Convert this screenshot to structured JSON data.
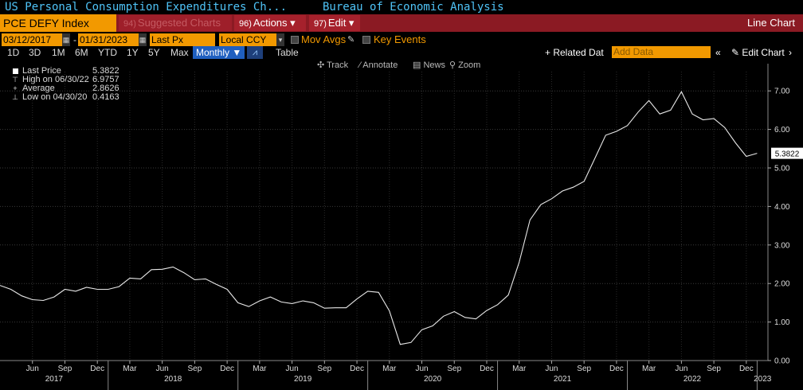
{
  "window": {
    "title": "US Personal Consumption Expenditures Ch...",
    "source": "Bureau of Economic Analysis"
  },
  "command_bar": {
    "ticker": "PCE DEFY Index",
    "suggested": {
      "num": "94)",
      "label": "Suggested Charts"
    },
    "actions": {
      "num": "96)",
      "label": "Actions ▾"
    },
    "edit": {
      "num": "97)",
      "label": "Edit ▾"
    },
    "chart_type": "Line Chart"
  },
  "range": {
    "start": "03/12/2017",
    "end": "01/31/2023",
    "dash": "-",
    "field": "Last Px",
    "currency": "Local CCY",
    "mov_avgs": "Mov Avgs",
    "key_events": "Key Events"
  },
  "toolbar": {
    "periods": [
      "1D",
      "3D",
      "1M",
      "6M",
      "YTD",
      "1Y",
      "5Y",
      "Max"
    ],
    "frequency": "Monthly ▼",
    "table": "Table",
    "related": "+ Related Dat",
    "add_data_placeholder": "Add Data",
    "collapse": "«",
    "edit_chart": "✎ Edit Chart",
    "scroll": "›"
  },
  "chart_tools": [
    "✣ Track",
    "⁄ Annotate",
    "▤ News",
    "⚲ Zoom"
  ],
  "legend": [
    {
      "key": "Last Price",
      "value": "5.3822"
    },
    {
      "key": "High on 06/30/22",
      "value": "6.9757"
    },
    {
      "key": "Average",
      "value": "2.8626"
    },
    {
      "key": "Low on 04/30/20",
      "value": "0.4163"
    }
  ],
  "colors": {
    "line": "#e8e8e8",
    "ticker_bg": "#f29900",
    "bar_bg": "#8b1a23",
    "title": "#4fc3f7"
  },
  "chart_data": {
    "type": "line",
    "last_label": "5.3822",
    "ylim": [
      0,
      7.5
    ],
    "yticks": [
      "0.00",
      "1.00",
      "2.00",
      "3.00",
      "4.00",
      "5.00",
      "6.00",
      "7.00"
    ],
    "xlim": [
      "2017-03",
      "2023-02"
    ],
    "month_ticks": [
      {
        "d": "2017-06",
        "t": "Jun"
      },
      {
        "d": "2017-09",
        "t": "Sep"
      },
      {
        "d": "2017-12",
        "t": "Dec"
      },
      {
        "d": "2018-03",
        "t": "Mar"
      },
      {
        "d": "2018-06",
        "t": "Jun"
      },
      {
        "d": "2018-09",
        "t": "Sep"
      },
      {
        "d": "2018-12",
        "t": "Dec"
      },
      {
        "d": "2019-03",
        "t": "Mar"
      },
      {
        "d": "2019-06",
        "t": "Jun"
      },
      {
        "d": "2019-09",
        "t": "Sep"
      },
      {
        "d": "2019-12",
        "t": "Dec"
      },
      {
        "d": "2020-03",
        "t": "Mar"
      },
      {
        "d": "2020-06",
        "t": "Jun"
      },
      {
        "d": "2020-09",
        "t": "Sep"
      },
      {
        "d": "2020-12",
        "t": "Dec"
      },
      {
        "d": "2021-03",
        "t": "Mar"
      },
      {
        "d": "2021-06",
        "t": "Jun"
      },
      {
        "d": "2021-09",
        "t": "Sep"
      },
      {
        "d": "2021-12",
        "t": "Dec"
      },
      {
        "d": "2022-03",
        "t": "Mar"
      },
      {
        "d": "2022-06",
        "t": "Jun"
      },
      {
        "d": "2022-09",
        "t": "Sep"
      },
      {
        "d": "2022-12",
        "t": "Dec"
      }
    ],
    "year_ticks": [
      {
        "d": "2017-01",
        "t": "2017"
      },
      {
        "d": "2018-01",
        "t": "2018"
      },
      {
        "d": "2019-01",
        "t": "2019"
      },
      {
        "d": "2020-01",
        "t": "2020"
      },
      {
        "d": "2021-01",
        "t": "2021"
      },
      {
        "d": "2022-01",
        "t": "2022"
      },
      {
        "d": "2023-01",
        "t": "2023"
      }
    ],
    "series": [
      {
        "dates": [
          "2017-03",
          "2017-04",
          "2017-05",
          "2017-06",
          "2017-07",
          "2017-08",
          "2017-09",
          "2017-10",
          "2017-11",
          "2017-12",
          "2018-01",
          "2018-02",
          "2018-03",
          "2018-04",
          "2018-05",
          "2018-06",
          "2018-07",
          "2018-08",
          "2018-09",
          "2018-10",
          "2018-11",
          "2018-12",
          "2019-01",
          "2019-02",
          "2019-03",
          "2019-04",
          "2019-05",
          "2019-06",
          "2019-07",
          "2019-08",
          "2019-09",
          "2019-10",
          "2019-11",
          "2019-12",
          "2020-01",
          "2020-02",
          "2020-03",
          "2020-04",
          "2020-05",
          "2020-06",
          "2020-07",
          "2020-08",
          "2020-09",
          "2020-10",
          "2020-11",
          "2020-12",
          "2021-01",
          "2021-02",
          "2021-03",
          "2021-04",
          "2021-05",
          "2021-06",
          "2021-07",
          "2021-08",
          "2021-09",
          "2021-10",
          "2021-11",
          "2021-12",
          "2022-01",
          "2022-02",
          "2022-03",
          "2022-04",
          "2022-05",
          "2022-06",
          "2022-07",
          "2022-08",
          "2022-09",
          "2022-10",
          "2022-11",
          "2022-12",
          "2023-01"
        ],
        "values": [
          1.95,
          1.85,
          1.68,
          1.58,
          1.56,
          1.65,
          1.85,
          1.8,
          1.9,
          1.85,
          1.85,
          1.92,
          2.14,
          2.12,
          2.36,
          2.37,
          2.43,
          2.28,
          2.1,
          2.12,
          1.98,
          1.85,
          1.5,
          1.4,
          1.55,
          1.65,
          1.52,
          1.48,
          1.55,
          1.5,
          1.36,
          1.37,
          1.37,
          1.6,
          1.8,
          1.77,
          1.29,
          0.42,
          0.47,
          0.8,
          0.9,
          1.15,
          1.27,
          1.12,
          1.08,
          1.3,
          1.45,
          1.7,
          2.55,
          3.65,
          4.05,
          4.2,
          4.4,
          4.5,
          4.65,
          5.25,
          5.85,
          5.95,
          6.1,
          6.45,
          6.75,
          6.4,
          6.5,
          6.98,
          6.4,
          6.25,
          6.28,
          6.05,
          5.65,
          5.3,
          5.38
        ]
      }
    ]
  }
}
